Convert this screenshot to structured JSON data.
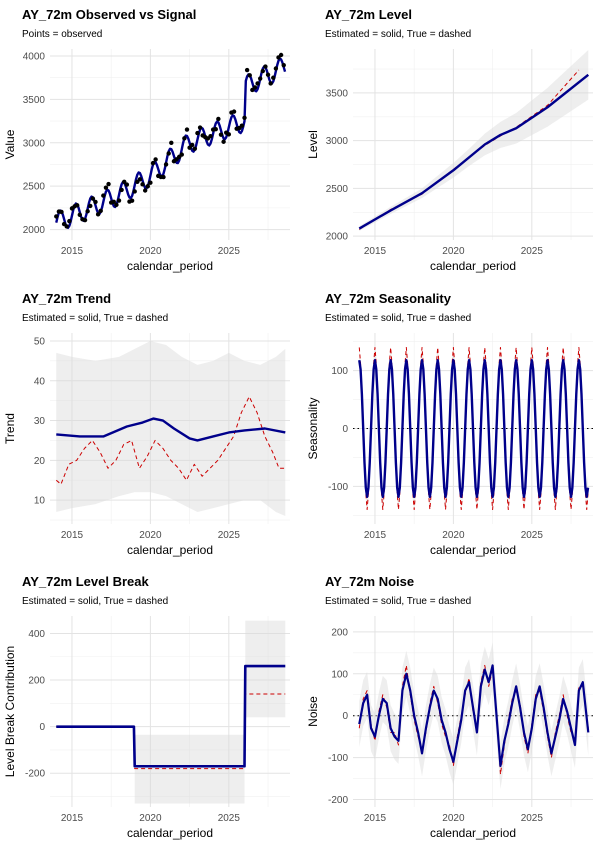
{
  "chart_data": [
    {
      "id": "observed",
      "type": "line",
      "title": "AY_72m Observed vs Signal",
      "subtitle": "Points = observed",
      "xlabel": "calendar_period",
      "ylabel": "Value",
      "xlim": [
        2013.6,
        2028.9
      ],
      "ylim": [
        1880,
        4080
      ],
      "xticks": [
        2015,
        2020,
        2025
      ],
      "yticks": [
        2000,
        2500,
        3000,
        3500,
        4000
      ],
      "grid": true,
      "legend": "none",
      "colors": {
        "estimated": "#00008b",
        "true": "#cc0000",
        "points": "#000000"
      },
      "signal_spec": {
        "level": [
          [
            2014.0,
            2080
          ],
          [
            2018.0,
            2400
          ],
          [
            2020.0,
            2620
          ],
          [
            2022.5,
            3000
          ],
          [
            2026.0,
            3250
          ],
          [
            2026.05,
            3650
          ],
          [
            2028.6,
            3880
          ]
        ],
        "amplitude": 120
      }
    },
    {
      "id": "level",
      "type": "line",
      "title": "AY_72m Level",
      "subtitle": "Estimated = solid, True = dashed",
      "xlabel": "calendar_period",
      "ylabel": "Level",
      "xlim": [
        2013.6,
        2028.9
      ],
      "ylim": [
        1960,
        3960
      ],
      "xticks": [
        2015,
        2020,
        2025
      ],
      "yticks": [
        2000,
        2500,
        3000,
        3500
      ],
      "grid": true,
      "legend": "none",
      "colors": {
        "estimated": "#00008b",
        "true": "#cc0000",
        "band": "#d9d9d9"
      },
      "estimated": [
        [
          2014.0,
          2080
        ],
        [
          2016.0,
          2270
        ],
        [
          2018.0,
          2450
        ],
        [
          2020.0,
          2690
        ],
        [
          2022.0,
          2960
        ],
        [
          2023.0,
          3060
        ],
        [
          2024.0,
          3130
        ],
        [
          2026.0,
          3350
        ],
        [
          2028.6,
          3690
        ]
      ],
      "true": [
        [
          2014.0,
          2070
        ],
        [
          2016.0,
          2280
        ],
        [
          2018.0,
          2440
        ],
        [
          2020.0,
          2700
        ],
        [
          2022.0,
          2950
        ],
        [
          2023.0,
          3050
        ],
        [
          2024.0,
          3140
        ],
        [
          2026.0,
          3370
        ],
        [
          2028.0,
          3740
        ]
      ],
      "band_width": [
        [
          2014.0,
          25
        ],
        [
          2018.0,
          50
        ],
        [
          2021.0,
          90
        ],
        [
          2024.0,
          160
        ],
        [
          2028.6,
          260
        ]
      ]
    },
    {
      "id": "trend",
      "type": "line",
      "title": "AY_72m Trend",
      "subtitle": "Estimated = solid, True = dashed",
      "xlabel": "calendar_period",
      "ylabel": "Trend",
      "xlim": [
        2013.6,
        2028.9
      ],
      "ylim": [
        4,
        52
      ],
      "xticks": [
        2015,
        2020,
        2025
      ],
      "yticks": [
        10,
        20,
        30,
        40,
        50
      ],
      "grid": true,
      "legend": "none",
      "colors": {
        "estimated": "#00008b",
        "true": "#cc0000",
        "band": "#d9d9d9"
      },
      "estimated": [
        [
          2014.0,
          26.5
        ],
        [
          2015.5,
          26.0
        ],
        [
          2017.0,
          26.0
        ],
        [
          2018.5,
          28.5
        ],
        [
          2019.5,
          29.5
        ],
        [
          2020.2,
          30.5
        ],
        [
          2020.8,
          30.0
        ],
        [
          2021.5,
          28.0
        ],
        [
          2022.5,
          25.5
        ],
        [
          2023.0,
          25.0
        ],
        [
          2024.0,
          26.0
        ],
        [
          2025.0,
          27.0
        ],
        [
          2026.0,
          27.5
        ],
        [
          2027.3,
          28.0
        ],
        [
          2028.6,
          27.0
        ]
      ],
      "true": [
        [
          2014.0,
          15.0
        ],
        [
          2014.3,
          14.0
        ],
        [
          2014.8,
          19.0
        ],
        [
          2015.3,
          20.0
        ],
        [
          2015.8,
          23.0
        ],
        [
          2016.3,
          25.0
        ],
        [
          2016.8,
          22.0
        ],
        [
          2017.3,
          18.0
        ],
        [
          2017.8,
          20.0
        ],
        [
          2018.3,
          24.0
        ],
        [
          2018.8,
          25.0
        ],
        [
          2019.3,
          18.0
        ],
        [
          2019.8,
          21.0
        ],
        [
          2020.3,
          25.0
        ],
        [
          2020.8,
          23.0
        ],
        [
          2021.3,
          20.0
        ],
        [
          2021.8,
          18.0
        ],
        [
          2022.3,
          15.0
        ],
        [
          2022.8,
          19.0
        ],
        [
          2023.3,
          16.0
        ],
        [
          2023.8,
          18.0
        ],
        [
          2024.3,
          20.0
        ],
        [
          2024.8,
          23.0
        ],
        [
          2025.3,
          26.0
        ],
        [
          2025.8,
          32.0
        ],
        [
          2026.3,
          36.0
        ],
        [
          2026.8,
          32.0
        ],
        [
          2027.3,
          26.0
        ],
        [
          2027.8,
          22.0
        ],
        [
          2028.2,
          18.0
        ],
        [
          2028.6,
          18.0
        ]
      ],
      "band_upper": [
        [
          2014.0,
          47
        ],
        [
          2015.0,
          46
        ],
        [
          2016.5,
          45
        ],
        [
          2018.0,
          46
        ],
        [
          2019.0,
          48
        ],
        [
          2020.0,
          50
        ],
        [
          2021.0,
          49
        ],
        [
          2022.0,
          46
        ],
        [
          2023.0,
          44
        ],
        [
          2024.0,
          45
        ],
        [
          2025.0,
          47
        ],
        [
          2026.0,
          45
        ],
        [
          2027.0,
          44
        ],
        [
          2028.0,
          46
        ],
        [
          2028.6,
          48
        ]
      ],
      "band_lower": [
        [
          2014.0,
          7
        ],
        [
          2015.0,
          8
        ],
        [
          2016.5,
          9
        ],
        [
          2018.0,
          11
        ],
        [
          2019.0,
          12
        ],
        [
          2020.0,
          12
        ],
        [
          2021.0,
          11
        ],
        [
          2022.0,
          9
        ],
        [
          2023.0,
          7
        ],
        [
          2024.0,
          8
        ],
        [
          2025.0,
          9
        ],
        [
          2026.0,
          10
        ],
        [
          2027.0,
          10
        ],
        [
          2028.0,
          7
        ],
        [
          2028.6,
          6
        ]
      ]
    },
    {
      "id": "seasonality",
      "type": "line",
      "title": "AY_72m Seasonality",
      "subtitle": "Estimated = solid, True = dashed",
      "xlabel": "calendar_period",
      "ylabel": "Seasonality",
      "xlim": [
        2013.6,
        2028.9
      ],
      "ylim": [
        -165,
        165
      ],
      "xticks": [
        2015,
        2020,
        2025
      ],
      "yticks": [
        -100,
        0,
        100
      ],
      "grid": true,
      "legend": "none",
      "colors": {
        "estimated": "#00008b",
        "true": "#cc0000",
        "band": "#d9d9d9"
      },
      "wave_spec": {
        "start": 2014.0,
        "end": 2028.6,
        "period": 1.0,
        "estimated_amplitude": 118,
        "true_amplitude": 140
      }
    },
    {
      "id": "levelbreak",
      "type": "line",
      "title": "AY_72m Level Break",
      "subtitle": "Estimated = solid, True = dashed",
      "xlabel": "calendar_period",
      "ylabel": "Level Break Contribution",
      "xlim": [
        2013.6,
        2028.9
      ],
      "ylim": [
        -345,
        475
      ],
      "xticks": [
        2015,
        2020,
        2025
      ],
      "yticks": [
        -200,
        0,
        200,
        400
      ],
      "grid": true,
      "legend": "none",
      "colors": {
        "estimated": "#00008b",
        "true": "#cc0000",
        "band": "#d9d9d9"
      },
      "estimated": [
        [
          2014.0,
          0
        ],
        [
          2018.95,
          0
        ],
        [
          2019.0,
          -170
        ],
        [
          2026.0,
          -170
        ],
        [
          2026.05,
          260
        ],
        [
          2028.6,
          260
        ]
      ],
      "true": [
        [
          2014.0,
          0
        ],
        [
          2018.95,
          0
        ],
        [
          2019.0,
          -180
        ],
        [
          2026.0,
          -180
        ],
        [
          2026.05,
          140
        ],
        [
          2028.6,
          140
        ]
      ],
      "bands": [
        {
          "x": [
            2019.0,
            2026.0
          ],
          "y": [
            -330,
            -35
          ]
        },
        {
          "x": [
            2026.05,
            2028.6
          ],
          "y": [
            40,
            455
          ]
        }
      ]
    },
    {
      "id": "noise",
      "type": "line",
      "title": "AY_72m Noise",
      "subtitle": "Estimated = solid, True = dashed",
      "xlabel": "calendar_period",
      "ylabel": "Noise",
      "xlim": [
        2013.6,
        2028.9
      ],
      "ylim": [
        -218,
        238
      ],
      "xticks": [
        2015,
        2020,
        2025
      ],
      "yticks": [
        -200,
        -100,
        0,
        100,
        200
      ],
      "grid": true,
      "legend": "none",
      "colors": {
        "estimated": "#00008b",
        "true": "#cc0000",
        "band": "#d9d9d9"
      },
      "estimated": [
        [
          2014.0,
          -20
        ],
        [
          2014.25,
          30
        ],
        [
          2014.5,
          50
        ],
        [
          2014.75,
          -30
        ],
        [
          2015.0,
          -50
        ],
        [
          2015.25,
          0
        ],
        [
          2015.5,
          40
        ],
        [
          2015.75,
          30
        ],
        [
          2016.0,
          -30
        ],
        [
          2016.25,
          -50
        ],
        [
          2016.5,
          -60
        ],
        [
          2016.75,
          60
        ],
        [
          2017.0,
          100
        ],
        [
          2017.25,
          60
        ],
        [
          2017.5,
          0
        ],
        [
          2017.75,
          -40
        ],
        [
          2018.0,
          -90
        ],
        [
          2018.25,
          -30
        ],
        [
          2018.5,
          20
        ],
        [
          2018.75,
          60
        ],
        [
          2019.0,
          40
        ],
        [
          2019.25,
          -10
        ],
        [
          2019.5,
          -40
        ],
        [
          2019.75,
          -80
        ],
        [
          2020.0,
          -110
        ],
        [
          2020.25,
          -60
        ],
        [
          2020.5,
          -10
        ],
        [
          2020.75,
          60
        ],
        [
          2021.0,
          80
        ],
        [
          2021.25,
          20
        ],
        [
          2021.5,
          -40
        ],
        [
          2021.75,
          70
        ],
        [
          2022.0,
          110
        ],
        [
          2022.25,
          80
        ],
        [
          2022.5,
          120
        ],
        [
          2022.75,
          0
        ],
        [
          2023.0,
          -120
        ],
        [
          2023.25,
          -60
        ],
        [
          2023.5,
          -20
        ],
        [
          2023.75,
          30
        ],
        [
          2024.0,
          70
        ],
        [
          2024.25,
          20
        ],
        [
          2024.5,
          -40
        ],
        [
          2024.75,
          -80
        ],
        [
          2025.0,
          -30
        ],
        [
          2025.25,
          40
        ],
        [
          2025.5,
          70
        ],
        [
          2025.75,
          20
        ],
        [
          2026.0,
          -40
        ],
        [
          2026.25,
          -90
        ],
        [
          2026.5,
          -50
        ],
        [
          2026.75,
          -10
        ],
        [
          2027.0,
          40
        ],
        [
          2027.25,
          10
        ],
        [
          2027.5,
          -30
        ],
        [
          2027.75,
          -70
        ],
        [
          2028.0,
          60
        ],
        [
          2028.25,
          80
        ],
        [
          2028.6,
          -40
        ]
      ],
      "true": [
        [
          2014.0,
          -30
        ],
        [
          2014.25,
          40
        ],
        [
          2014.5,
          60
        ],
        [
          2014.75,
          -20
        ],
        [
          2015.0,
          -60
        ],
        [
          2015.25,
          10
        ],
        [
          2015.5,
          50
        ],
        [
          2015.75,
          20
        ],
        [
          2016.0,
          -40
        ],
        [
          2016.25,
          -40
        ],
        [
          2016.5,
          -70
        ],
        [
          2016.75,
          70
        ],
        [
          2017.0,
          120
        ],
        [
          2017.25,
          50
        ],
        [
          2017.5,
          -10
        ],
        [
          2017.75,
          -50
        ],
        [
          2018.0,
          -80
        ],
        [
          2018.25,
          -40
        ],
        [
          2018.5,
          30
        ],
        [
          2018.75,
          70
        ],
        [
          2019.0,
          30
        ],
        [
          2019.25,
          -20
        ],
        [
          2019.5,
          -50
        ],
        [
          2019.75,
          -70
        ],
        [
          2020.0,
          -120
        ],
        [
          2020.25,
          -50
        ],
        [
          2020.5,
          0
        ],
        [
          2020.75,
          50
        ],
        [
          2021.0,
          90
        ],
        [
          2021.25,
          10
        ],
        [
          2021.5,
          -30
        ],
        [
          2021.75,
          80
        ],
        [
          2022.0,
          120
        ],
        [
          2022.25,
          70
        ],
        [
          2022.5,
          110
        ],
        [
          2022.75,
          10
        ],
        [
          2023.0,
          -140
        ],
        [
          2023.25,
          -70
        ],
        [
          2023.5,
          -10
        ],
        [
          2023.75,
          40
        ],
        [
          2024.0,
          60
        ],
        [
          2024.25,
          30
        ],
        [
          2024.5,
          -50
        ],
        [
          2024.75,
          -90
        ],
        [
          2025.0,
          -20
        ],
        [
          2025.25,
          50
        ],
        [
          2025.5,
          60
        ],
        [
          2025.75,
          10
        ],
        [
          2026.0,
          -50
        ],
        [
          2026.25,
          -100
        ],
        [
          2026.5,
          -40
        ],
        [
          2026.75,
          0
        ],
        [
          2027.0,
          50
        ],
        [
          2027.25,
          0
        ],
        [
          2027.5,
          -40
        ],
        [
          2027.75,
          -60
        ],
        [
          2028.0,
          70
        ],
        [
          2028.25,
          70
        ],
        [
          2028.6,
          -30
        ]
      ],
      "band_width": 55
    }
  ]
}
